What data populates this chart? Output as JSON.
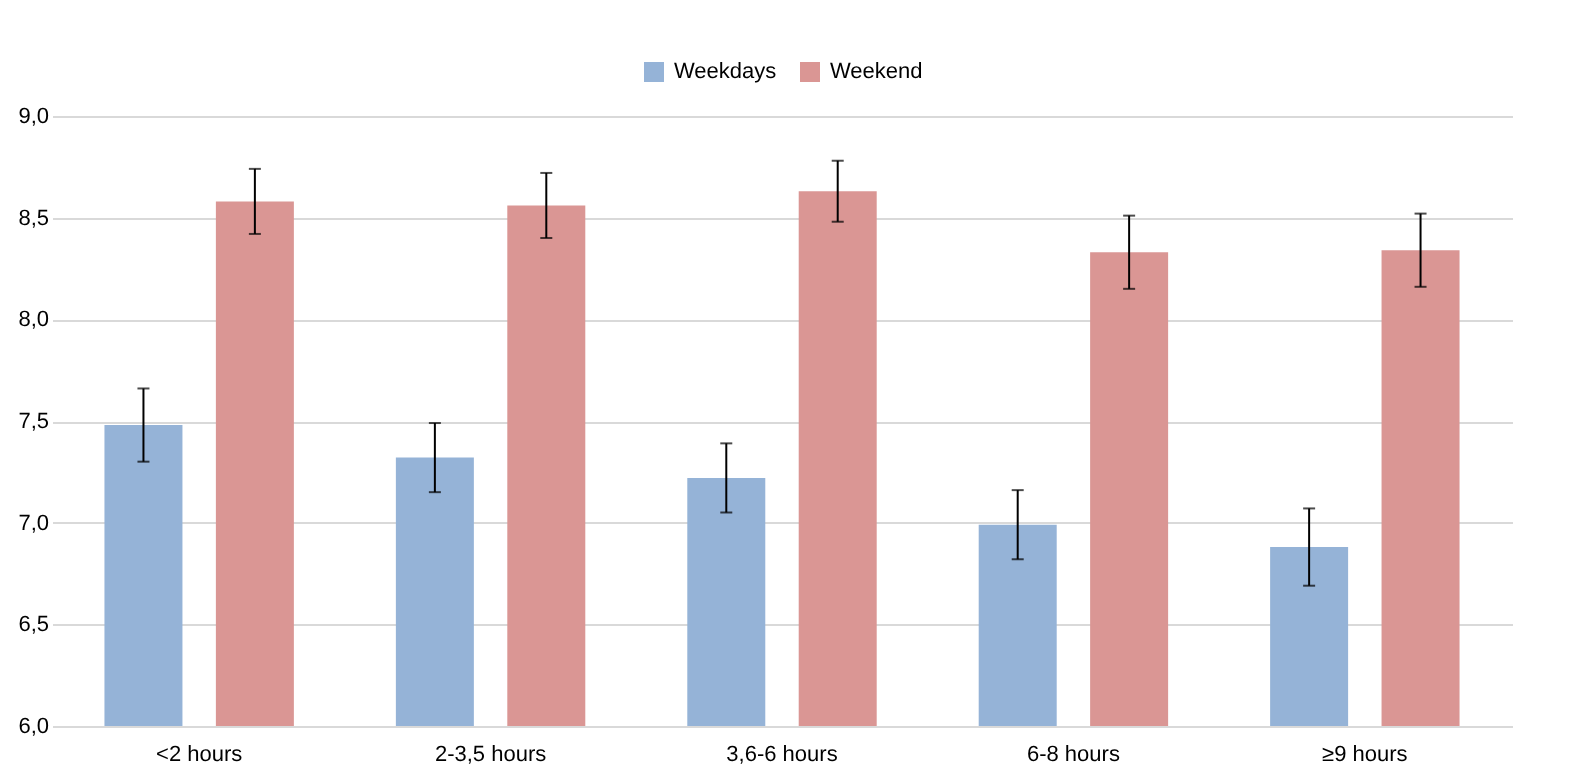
{
  "chart_data": {
    "type": "bar",
    "categories": [
      "<2 hours",
      "2-3,5 hours",
      "3,6-6 hours",
      "6-8 hours",
      "≥9 hours"
    ],
    "series": [
      {
        "name": "Weekdays",
        "color": "#95b3d7",
        "values": [
          7.48,
          7.32,
          7.22,
          6.99,
          6.88
        ],
        "errors": [
          0.18,
          0.17,
          0.17,
          0.17,
          0.19
        ]
      },
      {
        "name": "Weekend",
        "color": "#da9694",
        "values": [
          8.58,
          8.56,
          8.63,
          8.33,
          8.34
        ],
        "errors": [
          0.16,
          0.16,
          0.15,
          0.18,
          0.18
        ]
      }
    ],
    "ylim": [
      6,
      9
    ],
    "yticks": [
      {
        "value": 6,
        "label": "6,0"
      },
      {
        "value": 6.5,
        "label": "6,5"
      },
      {
        "value": 7,
        "label": "7,0"
      },
      {
        "value": 7.5,
        "label": "7,5"
      },
      {
        "value": 8,
        "label": "8,0"
      },
      {
        "value": 8.5,
        "label": "8,5"
      },
      {
        "value": 9,
        "label": "9,0"
      }
    ],
    "grid": "y",
    "legend": "top"
  }
}
